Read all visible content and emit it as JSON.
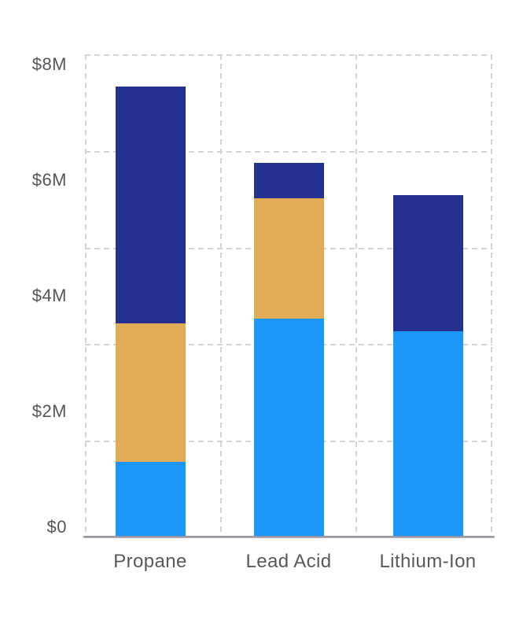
{
  "chart_data": {
    "type": "bar",
    "stacked": true,
    "title": "",
    "xlabel": "",
    "ylabel": "",
    "legend": "none",
    "grid": "dashed, both axes",
    "value_unit": "$M",
    "categories": [
      "Propane",
      "Lead Acid",
      "Lithium-Ion"
    ],
    "series": [
      {
        "name": "segment-bottom",
        "color": "#1C96F7",
        "values": [
          1.3,
          3.78,
          3.56
        ]
      },
      {
        "name": "segment-middle",
        "color": "#E2AC57",
        "values": [
          2.4,
          2.08,
          0
        ]
      },
      {
        "name": "segment-top",
        "color": "#23308F",
        "values": [
          4.1,
          0.62,
          2.36
        ]
      }
    ],
    "y_ticks": [
      "$8M",
      "$6M",
      "$4M",
      "$2M",
      "$0"
    ],
    "ylim": [
      0,
      8.35
    ]
  },
  "colors": {
    "background": "#FFFFFF",
    "gridline": "#D5D5D7",
    "axis_line": "#9A9DA8",
    "tick_text": "#55565C",
    "category_text": "#58595D",
    "bar_light_blue": "#1C96F7",
    "bar_amber": "#E2AC57",
    "bar_dark_blue": "#23308F"
  }
}
